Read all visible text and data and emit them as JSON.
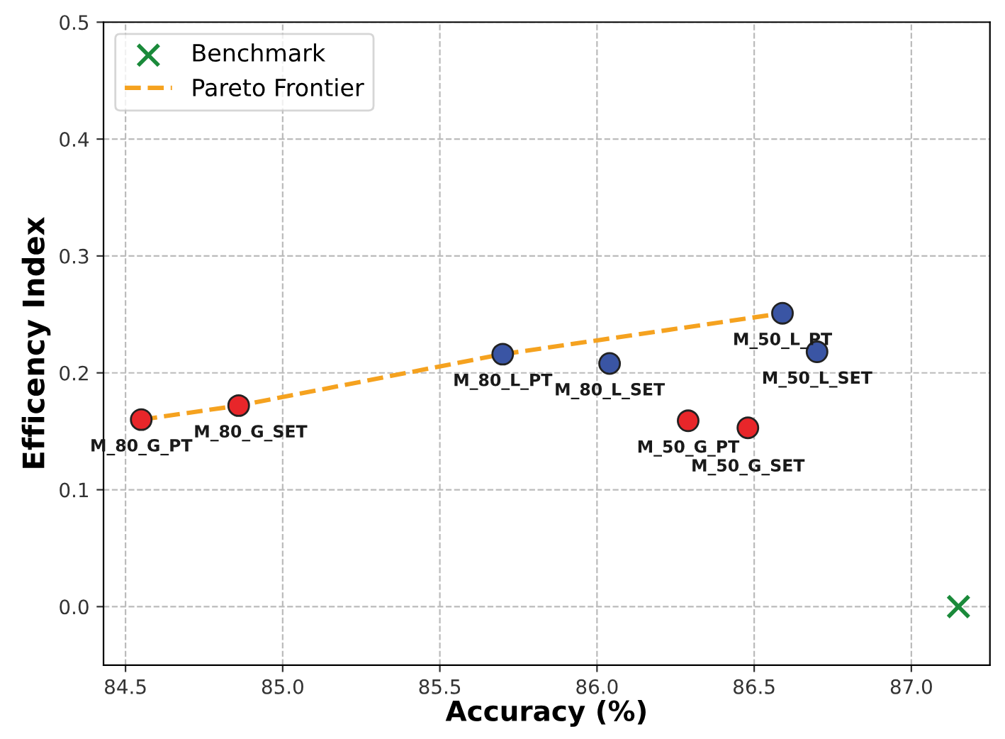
{
  "chart_data": {
    "type": "scatter",
    "xlabel": "Accuracy (%)",
    "ylabel": "Efficency Index",
    "xlim": [
      84.43,
      87.25
    ],
    "ylim": [
      -0.05,
      0.5
    ],
    "xticks": [
      84.5,
      {
        "value": 85,
        "label": "85.0"
      },
      85.5,
      {
        "value": 86,
        "label": "86.0"
      },
      86.5,
      {
        "value": 87,
        "label": "87.0"
      }
    ],
    "yticks": [
      {
        "value": 0,
        "label": "0.0"
      },
      0.1,
      0.2,
      0.3,
      0.4,
      0.5
    ],
    "grid": true,
    "legend": "top left",
    "series": [
      {
        "color": "#e8262a",
        "marker": "circle",
        "x": [
          84.55,
          84.86,
          86.29,
          86.48
        ],
        "values": [
          0.16,
          0.172,
          0.159,
          0.153
        ]
      },
      {
        "color": "#3a55a4",
        "marker": "circle",
        "x": [
          85.7,
          86.04,
          86.59,
          86.7
        ],
        "values": [
          0.216,
          0.208,
          0.251,
          0.218
        ]
      },
      {
        "name": "Benchmark",
        "color": "#1a8a3a",
        "marker": "cross",
        "x": [
          87.15
        ],
        "values": [
          0.0
        ]
      },
      {
        "name": "Pareto Frontier",
        "type": "line",
        "color": "#f5a21f",
        "line_style": "dashed",
        "marker": "none",
        "x": [
          84.55,
          84.86,
          85.7,
          86.59
        ],
        "values": [
          0.16,
          0.172,
          0.216,
          0.251
        ]
      }
    ],
    "annotations": [
      {
        "text": "M_80_G_PT",
        "x": 84.55,
        "y": 0.16
      },
      {
        "text": "M_80_G_SET",
        "x": 84.86,
        "y": 0.172
      },
      {
        "text": "M_50_G_PT",
        "x": 86.29,
        "y": 0.159
      },
      {
        "text": "M_50_G_SET",
        "x": 86.48,
        "y": 0.153
      },
      {
        "text": "M_80_L_PT",
        "x": 85.7,
        "y": 0.216
      },
      {
        "text": "M_80_L_SET",
        "x": 86.04,
        "y": 0.208
      },
      {
        "text": "M_50_L_PT",
        "x": 86.59,
        "y": 0.251
      },
      {
        "text": "M_50_L_SET",
        "x": 86.7,
        "y": 0.218
      }
    ]
  }
}
